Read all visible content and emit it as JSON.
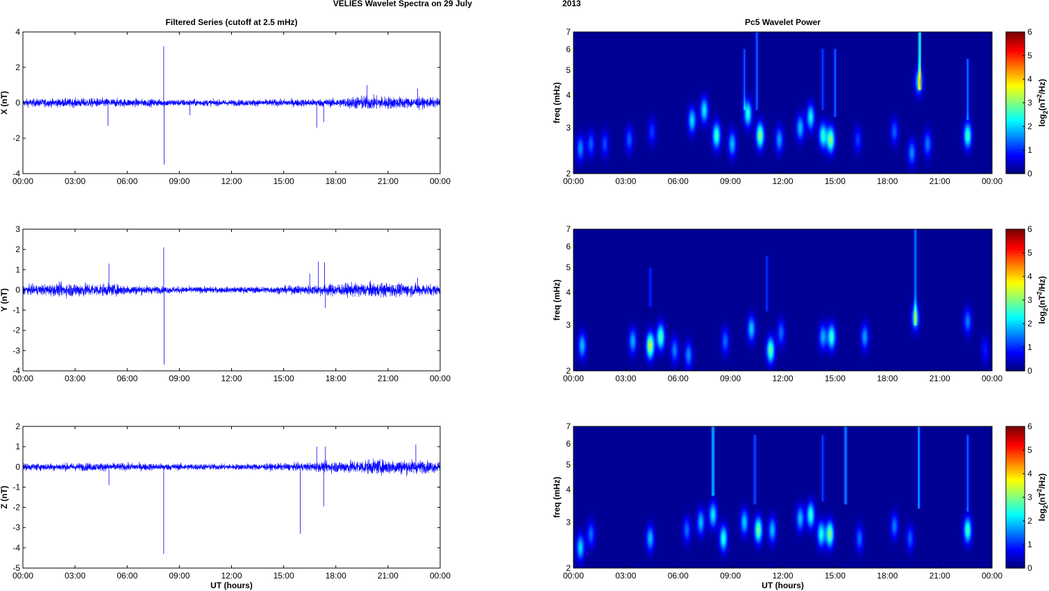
{
  "figure": {
    "title_left": "VELIES Wavelet Spectra on 29 July",
    "title_right": "2013",
    "left_column_title": "Filtered Series (cutoff at 2.5 mHz)",
    "right_column_title": "Pc5 Wavelet Power",
    "xlabel": "UT (hours)",
    "time_ticks": [
      "00:00",
      "03:00",
      "06:00",
      "09:00",
      "12:00",
      "15:00",
      "18:00",
      "21:00",
      "00:00"
    ],
    "freq_label": "freq (mHz)",
    "colorbar_label": "log2(nT^2/Hz)",
    "colorbar_ticks": [
      "0",
      "1",
      "2",
      "3",
      "4",
      "5",
      "6"
    ]
  },
  "chart_data": [
    {
      "type": "line",
      "title": "Filtered Series (cutoff at 2.5 mHz)",
      "ylabel": "X (nT)",
      "xlabel": "",
      "xlim": [
        0,
        24
      ],
      "ylim": [
        -4,
        4
      ],
      "yticks": [
        "-4",
        "-2",
        "0",
        "2",
        "4"
      ],
      "color": "#0000ff",
      "noise": [
        [
          0,
          0.15
        ],
        [
          4,
          0.18
        ],
        [
          8,
          0.14
        ],
        [
          12,
          0.12
        ],
        [
          15,
          0.14
        ],
        [
          18,
          0.16
        ],
        [
          19.5,
          0.28
        ],
        [
          21,
          0.25
        ],
        [
          23,
          0.2
        ],
        [
          24,
          0.18
        ]
      ],
      "spikes": [
        [
          4.9,
          -1.3
        ],
        [
          8.1,
          3.2
        ],
        [
          8.12,
          -3.5
        ],
        [
          9.6,
          -0.7
        ],
        [
          16.9,
          -1.4
        ],
        [
          17.3,
          -1.1
        ],
        [
          19.8,
          1.0
        ],
        [
          22.7,
          0.8
        ],
        [
          22.8,
          -0.4
        ]
      ]
    },
    {
      "type": "line",
      "ylabel": "Y (nT)",
      "xlabel": "",
      "xlim": [
        0,
        24
      ],
      "ylim": [
        -4,
        3
      ],
      "yticks": [
        "-4",
        "-3",
        "-2",
        "-1",
        "0",
        "1",
        "2",
        "3"
      ],
      "color": "#0000ff",
      "noise": [
        [
          0,
          0.15
        ],
        [
          3,
          0.25
        ],
        [
          5,
          0.2
        ],
        [
          8,
          0.12
        ],
        [
          12,
          0.1
        ],
        [
          15,
          0.13
        ],
        [
          17.5,
          0.2
        ],
        [
          20,
          0.25
        ],
        [
          22,
          0.22
        ],
        [
          24,
          0.18
        ]
      ],
      "spikes": [
        [
          4.95,
          1.3
        ],
        [
          8.1,
          2.1
        ],
        [
          8.12,
          -3.7
        ],
        [
          16.5,
          0.8
        ],
        [
          17.0,
          1.4
        ],
        [
          17.35,
          1.35
        ],
        [
          17.4,
          -0.9
        ],
        [
          22.7,
          0.6
        ]
      ]
    },
    {
      "type": "line",
      "ylabel": "Z (nT)",
      "xlabel": "UT (hours)",
      "xlim": [
        0,
        24
      ],
      "ylim": [
        -5,
        2
      ],
      "yticks": [
        "-5",
        "-4",
        "-3",
        "-2",
        "-1",
        "0",
        "1",
        "2"
      ],
      "color": "#0000ff",
      "noise": [
        [
          0,
          0.12
        ],
        [
          4,
          0.14
        ],
        [
          8,
          0.12
        ],
        [
          12,
          0.1
        ],
        [
          16,
          0.13
        ],
        [
          18,
          0.2
        ],
        [
          20,
          0.25
        ],
        [
          22,
          0.25
        ],
        [
          24,
          0.18
        ]
      ],
      "spikes": [
        [
          4.95,
          -0.9
        ],
        [
          8.1,
          -4.3
        ],
        [
          15.95,
          -3.3
        ],
        [
          16.9,
          1.0
        ],
        [
          17.3,
          -1.95
        ],
        [
          17.4,
          1.0
        ],
        [
          22.6,
          1.1
        ]
      ]
    },
    {
      "type": "heatmap",
      "title": "Pc5 Wavelet Power",
      "ylabel": "freq (mHz)",
      "xlabel": "",
      "xlim": [
        0,
        24
      ],
      "ylim": [
        2,
        7
      ],
      "ytick_values": [
        2,
        3,
        4,
        5,
        6,
        7
      ],
      "colorbar": {
        "label": "log2(nT^2/Hz)",
        "range": [
          0,
          6
        ]
      },
      "blobs": [
        [
          0.4,
          2.5,
          1.5
        ],
        [
          1.0,
          2.6,
          1.2
        ],
        [
          1.8,
          2.6,
          1.1
        ],
        [
          3.2,
          2.7,
          1.2
        ],
        [
          4.5,
          2.9,
          1.0
        ],
        [
          6.8,
          3.2,
          2.0
        ],
        [
          7.5,
          3.5,
          2.1
        ],
        [
          8.2,
          2.8,
          2.6
        ],
        [
          9.1,
          2.6,
          1.8
        ],
        [
          10.0,
          3.4,
          2.4
        ],
        [
          10.7,
          2.8,
          3.0
        ],
        [
          11.8,
          2.7,
          1.6
        ],
        [
          13.0,
          3.0,
          1.8
        ],
        [
          13.6,
          3.3,
          2.2
        ],
        [
          14.3,
          2.8,
          2.4
        ],
        [
          14.75,
          2.7,
          3.0
        ],
        [
          16.3,
          2.7,
          1.0
        ],
        [
          18.4,
          2.9,
          1.2
        ],
        [
          19.4,
          2.4,
          1.5
        ],
        [
          19.8,
          4.5,
          2.0
        ],
        [
          20.3,
          2.6,
          1.4
        ],
        [
          22.6,
          2.8,
          2.6
        ]
      ],
      "streaks": [
        [
          19.85,
          4.2,
          7.0,
          3.2
        ],
        [
          10.5,
          3.5,
          7.0,
          1.6
        ],
        [
          15.0,
          3.3,
          6.0,
          1.5
        ],
        [
          9.8,
          3.5,
          6.0,
          1.4
        ],
        [
          14.3,
          3.5,
          6.0,
          1.3
        ],
        [
          22.6,
          3.2,
          5.5,
          1.6
        ]
      ]
    },
    {
      "type": "heatmap",
      "ylabel": "freq (mHz)",
      "xlabel": "",
      "xlim": [
        0,
        24
      ],
      "ylim": [
        2,
        7
      ],
      "ytick_values": [
        2,
        3,
        4,
        5,
        6,
        7
      ],
      "colorbar": {
        "label": "log2(nT^2/Hz)",
        "range": [
          0,
          6
        ]
      },
      "blobs": [
        [
          0.5,
          2.5,
          1.8
        ],
        [
          3.4,
          2.6,
          1.7
        ],
        [
          4.4,
          2.5,
          3.4
        ],
        [
          5.0,
          2.7,
          2.7
        ],
        [
          5.8,
          2.4,
          1.4
        ],
        [
          6.6,
          2.3,
          1.5
        ],
        [
          8.7,
          2.6,
          1.3
        ],
        [
          10.2,
          2.9,
          1.9
        ],
        [
          11.3,
          2.4,
          2.8
        ],
        [
          11.9,
          2.8,
          1.3
        ],
        [
          14.3,
          2.7,
          1.7
        ],
        [
          14.8,
          2.7,
          2.5
        ],
        [
          16.7,
          2.7,
          1.6
        ],
        [
          19.6,
          3.2,
          2.0
        ],
        [
          22.6,
          3.1,
          1.4
        ],
        [
          23.6,
          2.4,
          0.8
        ]
      ],
      "streaks": [
        [
          19.6,
          3.0,
          7.0,
          1.8
        ],
        [
          4.4,
          3.5,
          5.0,
          1.2
        ],
        [
          11.1,
          3.4,
          5.5,
          1.2
        ]
      ]
    },
    {
      "type": "heatmap",
      "ylabel": "freq (mHz)",
      "xlabel": "UT (hours)",
      "xlim": [
        0,
        24
      ],
      "ylim": [
        2,
        7
      ],
      "ytick_values": [
        2,
        3,
        4,
        5,
        6,
        7
      ],
      "colorbar": {
        "label": "log2(nT^2/Hz)",
        "range": [
          0,
          6
        ]
      },
      "blobs": [
        [
          0.4,
          2.4,
          2.0
        ],
        [
          1.0,
          2.7,
          1.3
        ],
        [
          4.4,
          2.6,
          1.8
        ],
        [
          6.5,
          2.8,
          1.3
        ],
        [
          7.3,
          3.0,
          1.8
        ],
        [
          8.0,
          3.2,
          2.1
        ],
        [
          8.6,
          2.6,
          2.4
        ],
        [
          9.8,
          3.0,
          1.9
        ],
        [
          10.6,
          2.8,
          2.9
        ],
        [
          11.4,
          2.8,
          1.8
        ],
        [
          13.0,
          3.1,
          1.8
        ],
        [
          13.6,
          3.2,
          2.5
        ],
        [
          14.2,
          2.7,
          2.3
        ],
        [
          14.7,
          2.7,
          3.0
        ],
        [
          16.4,
          2.6,
          1.3
        ],
        [
          18.4,
          2.9,
          1.4
        ],
        [
          19.3,
          2.6,
          1.2
        ],
        [
          22.6,
          2.8,
          2.6
        ]
      ],
      "streaks": [
        [
          8.0,
          3.8,
          7.0,
          2.4
        ],
        [
          15.6,
          3.5,
          7.0,
          2.0
        ],
        [
          19.8,
          3.4,
          7.0,
          2.0
        ],
        [
          10.4,
          3.5,
          6.5,
          1.5
        ],
        [
          14.3,
          3.6,
          6.5,
          1.3
        ],
        [
          22.6,
          3.3,
          6.5,
          1.5
        ]
      ]
    }
  ]
}
